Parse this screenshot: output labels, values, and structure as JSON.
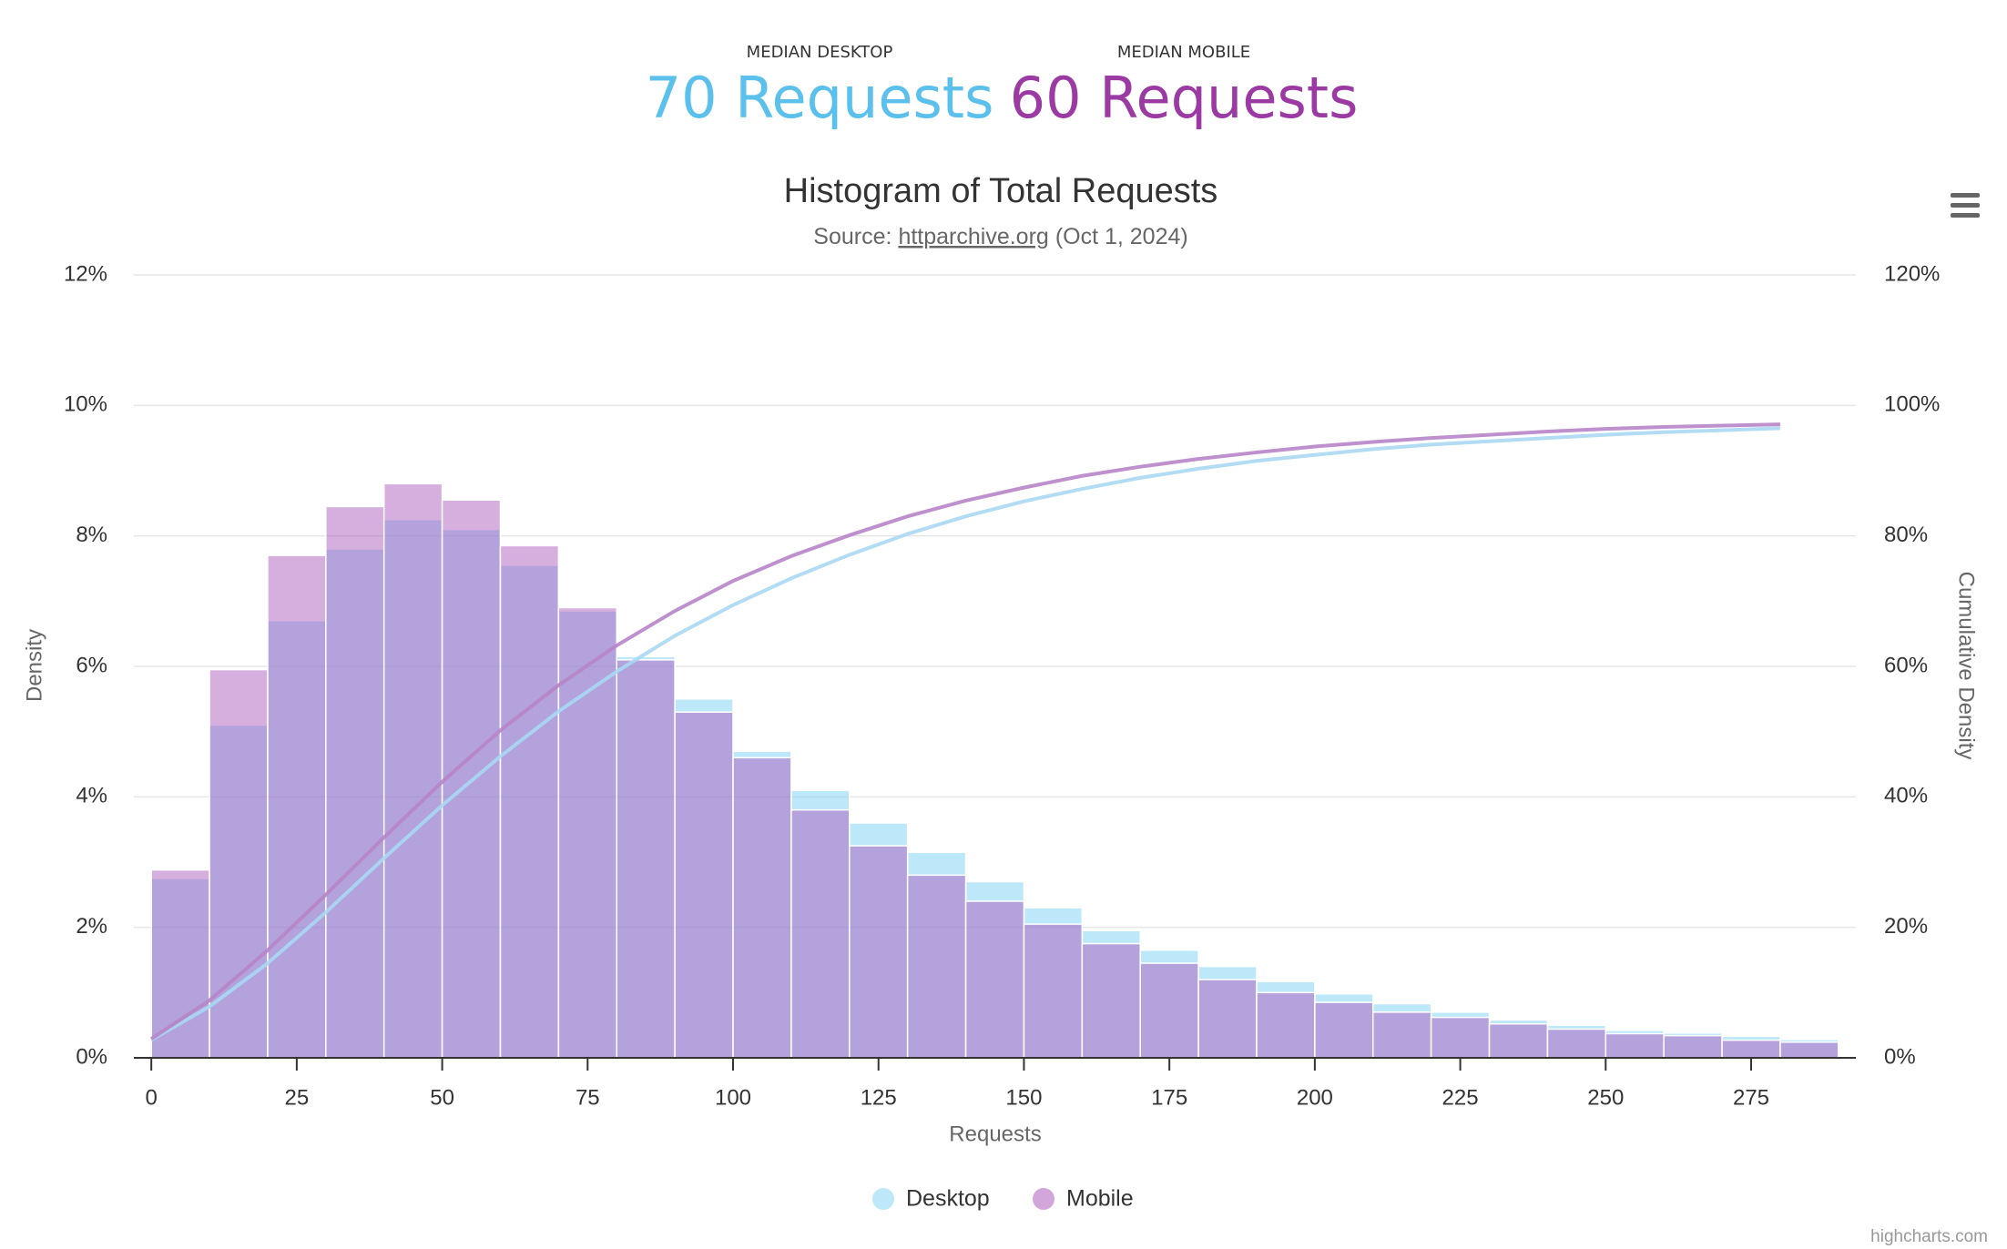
{
  "header": {
    "medians": [
      {
        "label": "MEDIAN DESKTOP",
        "value_text": "70 Requests",
        "color": "#5bc0eb"
      },
      {
        "label": "MEDIAN MOBILE",
        "value_text": "60 Requests",
        "color": "#9b3aa3"
      }
    ]
  },
  "chart_data": {
    "type": "histogram",
    "title": "Histogram of Total Requests",
    "subtitle": {
      "prefix": "Source:",
      "link": "httparchive.org",
      "suffix": "(Oct 1, 2024)"
    },
    "x_label": "Requests",
    "y_label": "Density",
    "y2_label": "Cumulative Density",
    "bins": [
      0,
      10,
      20,
      30,
      40,
      50,
      60,
      70,
      80,
      90,
      100,
      110,
      120,
      130,
      140,
      150,
      160,
      170,
      180,
      190,
      200,
      210,
      220,
      230,
      240,
      250,
      260,
      270,
      280,
      290
    ],
    "series": [
      {
        "name": "Desktop",
        "color": "#7cd1f5",
        "values": [
          2.75,
          5.1,
          6.7,
          7.8,
          8.25,
          8.1,
          7.55,
          6.85,
          6.15,
          5.5,
          4.7,
          4.1,
          3.6,
          3.15,
          2.7,
          2.3,
          1.95,
          1.65,
          1.4,
          1.17,
          0.98,
          0.83,
          0.7,
          0.58,
          0.5,
          0.42,
          0.38,
          0.33,
          0.28
        ]
      },
      {
        "name": "Mobile",
        "color": "#a64db8",
        "values": [
          2.88,
          5.95,
          7.7,
          8.45,
          8.8,
          8.55,
          7.85,
          6.9,
          6.1,
          5.3,
          4.6,
          3.8,
          3.25,
          2.8,
          2.4,
          2.05,
          1.75,
          1.45,
          1.2,
          1.0,
          0.85,
          0.7,
          0.62,
          0.52,
          0.44,
          0.37,
          0.34,
          0.27,
          0.24
        ]
      }
    ],
    "cumulative_x": [
      0,
      10,
      20,
      30,
      40,
      50,
      60,
      70,
      80,
      90,
      100,
      110,
      120,
      130,
      140,
      150,
      160,
      170,
      180,
      190,
      200,
      210,
      220,
      230,
      240,
      250,
      260,
      270,
      280
    ],
    "line_series": [
      {
        "color": "#a8d8f3",
        "axis": "y2",
        "values": [
          2.75,
          7.85,
          14.5,
          22.3,
          30.6,
          38.7,
          46.2,
          53.1,
          59.2,
          64.7,
          69.4,
          73.5,
          77.1,
          80.3,
          83.0,
          85.3,
          87.2,
          88.9,
          90.3,
          91.5,
          92.4,
          93.3,
          94.0,
          94.5,
          95.0,
          95.5,
          95.9,
          96.2,
          96.5
        ]
      },
      {
        "color": "#b784c8",
        "axis": "y2",
        "values": [
          2.9,
          8.8,
          16.5,
          25.0,
          33.8,
          42.3,
          50.2,
          57.1,
          63.2,
          68.5,
          73.1,
          76.9,
          80.1,
          83.0,
          85.4,
          87.4,
          89.2,
          90.6,
          91.8,
          92.8,
          93.7,
          94.4,
          95.0,
          95.5,
          96.0,
          96.4,
          96.7,
          96.9,
          97.1
        ]
      }
    ],
    "xlim": [
      -3,
      293
    ],
    "xticks": [
      0,
      25,
      50,
      75,
      100,
      125,
      150,
      175,
      200,
      225,
      250,
      275
    ],
    "ylim": [
      0,
      12
    ],
    "yticks": [
      {
        "value": 0,
        "label": "0%"
      },
      {
        "value": 2,
        "label": "2%"
      },
      {
        "value": 4,
        "label": "4%"
      },
      {
        "value": 6,
        "label": "6%"
      },
      {
        "value": 8,
        "label": "8%"
      },
      {
        "value": 10,
        "label": "10%"
      },
      {
        "value": 12,
        "label": "12%"
      }
    ],
    "y2lim": [
      0,
      120
    ],
    "y2ticks": [
      {
        "value": 0,
        "label": "0%"
      },
      {
        "value": 20,
        "label": "20%"
      },
      {
        "value": 40,
        "label": "40%"
      },
      {
        "value": 60,
        "label": "60%"
      },
      {
        "value": 80,
        "label": "80%"
      },
      {
        "value": 100,
        "label": "100%"
      },
      {
        "value": 120,
        "label": "120%"
      }
    ],
    "grid": true,
    "legend": "bottom",
    "credits": "highcharts.com"
  }
}
